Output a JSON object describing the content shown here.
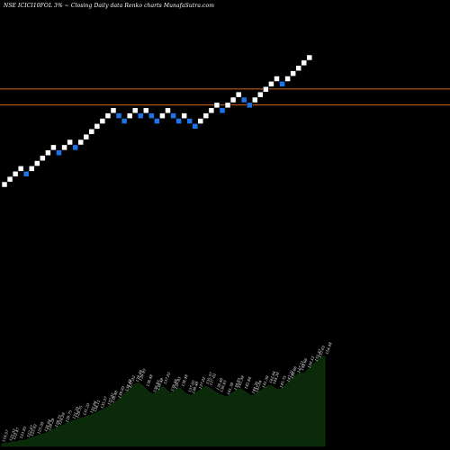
{
  "header": {
    "title": "NSE ICICI10FOL 3% ~  Closing Daily data  Renko  charts MunafaSutra.com"
  },
  "colors": {
    "background": "#000000",
    "up_brick": "#ffffff",
    "down_brick": "#1e73e6",
    "reference_line": "#d2691e",
    "volume_fill": "#0a2a0a"
  },
  "chart_data": {
    "type": "renko",
    "title": "NSE ICICI10FOL 3% ~  Closing Daily data  Renko  charts MunafaSutra.com",
    "xlabel": "",
    "ylabel": "",
    "reference_lines": [
      145.85,
      141.45
    ],
    "bricks": [
      {
        "dir": "up",
        "value": 119.57
      },
      {
        "dir": "up",
        "value": 121.02
      },
      {
        "dir": "up",
        "value": 122.47
      },
      {
        "dir": "up",
        "value": 123.93
      },
      {
        "dir": "down",
        "value": 122.47
      },
      {
        "dir": "up",
        "value": 123.93
      },
      {
        "dir": "up",
        "value": 125.38
      },
      {
        "dir": "up",
        "value": 126.84
      },
      {
        "dir": "up",
        "value": 128.29
      },
      {
        "dir": "up",
        "value": 129.75
      },
      {
        "dir": "down",
        "value": 128.29
      },
      {
        "dir": "up",
        "value": 129.75
      },
      {
        "dir": "up",
        "value": 131.2
      },
      {
        "dir": "down",
        "value": 129.75
      },
      {
        "dir": "up",
        "value": 131.2
      },
      {
        "dir": "up",
        "value": 132.66
      },
      {
        "dir": "up",
        "value": 134.11
      },
      {
        "dir": "up",
        "value": 135.57
      },
      {
        "dir": "up",
        "value": 137.02
      },
      {
        "dir": "up",
        "value": 138.48
      },
      {
        "dir": "up",
        "value": 139.93
      },
      {
        "dir": "down",
        "value": 138.48
      },
      {
        "dir": "down",
        "value": 137.02
      },
      {
        "dir": "up",
        "value": 138.48
      },
      {
        "dir": "up",
        "value": 139.93
      },
      {
        "dir": "down",
        "value": 138.48
      },
      {
        "dir": "up",
        "value": 139.93
      },
      {
        "dir": "down",
        "value": 138.48
      },
      {
        "dir": "down",
        "value": 137.02
      },
      {
        "dir": "up",
        "value": 138.48
      },
      {
        "dir": "up",
        "value": 139.93
      },
      {
        "dir": "down",
        "value": 138.48
      },
      {
        "dir": "down",
        "value": 137.02
      },
      {
        "dir": "up",
        "value": 138.48
      },
      {
        "dir": "down",
        "value": 137.02
      },
      {
        "dir": "down",
        "value": 135.57
      },
      {
        "dir": "up",
        "value": 137.02
      },
      {
        "dir": "up",
        "value": 138.48
      },
      {
        "dir": "up",
        "value": 139.93
      },
      {
        "dir": "up",
        "value": 141.39
      },
      {
        "dir": "down",
        "value": 139.93
      },
      {
        "dir": "up",
        "value": 141.39
      },
      {
        "dir": "up",
        "value": 142.84
      },
      {
        "dir": "up",
        "value": 144.3
      },
      {
        "dir": "down",
        "value": 142.84
      },
      {
        "dir": "down",
        "value": 141.39
      },
      {
        "dir": "up",
        "value": 142.84
      },
      {
        "dir": "up",
        "value": 144.3
      },
      {
        "dir": "up",
        "value": 145.75
      },
      {
        "dir": "up",
        "value": 147.21
      },
      {
        "dir": "up",
        "value": 148.66
      },
      {
        "dir": "down",
        "value": 147.21
      },
      {
        "dir": "up",
        "value": 148.66
      },
      {
        "dir": "up",
        "value": 150.12
      },
      {
        "dir": "up",
        "value": 151.57
      },
      {
        "dir": "up",
        "value": 153.03
      },
      {
        "dir": "up",
        "value": 154.48
      }
    ],
    "volume_profile": [
      2,
      3,
      3,
      4,
      4,
      5,
      5,
      6,
      7,
      8,
      9,
      10,
      11,
      12,
      14,
      15,
      17,
      18,
      19,
      21,
      22,
      23,
      24,
      25,
      26,
      27,
      28,
      29,
      31,
      32,
      34,
      36,
      38,
      40,
      43,
      46,
      49,
      52,
      54,
      55,
      53,
      50,
      47,
      45,
      47,
      50,
      52,
      49,
      46,
      48,
      51,
      50,
      47,
      45,
      44,
      46,
      48,
      50,
      52,
      51,
      49,
      47,
      45,
      44,
      43,
      45,
      47,
      49,
      50,
      48,
      46,
      44,
      45,
      47,
      49,
      51,
      53,
      52,
      50,
      49,
      51,
      54,
      57,
      60,
      62,
      64,
      63,
      66,
      69,
      72,
      75,
      77,
      78
    ],
    "price_labels": [
      "119.57",
      "121.02",
      "122.47",
      "123.93",
      "122.47",
      "123.93",
      "125.38",
      "126.84",
      "128.29",
      "129.75",
      "128.29",
      "129.75",
      "131.20",
      "129.75",
      "131.20",
      "132.66",
      "134.11",
      "135.57",
      "137.02",
      "138.48",
      "139.93",
      "138.48",
      "137.02",
      "138.48",
      "139.93",
      "138.48",
      "139.93",
      "138.48",
      "137.02",
      "138.48",
      "139.93",
      "138.48",
      "137.02",
      "138.48",
      "137.02",
      "135.57",
      "137.02",
      "138.48",
      "139.93",
      "141.39",
      "139.93",
      "141.39",
      "142.84",
      "144.30",
      "142.84",
      "141.39",
      "142.84",
      "144.30",
      "145.75",
      "147.21",
      "148.66",
      "147.21",
      "148.66",
      "150.12",
      "151.57",
      "153.03",
      "154.48"
    ]
  }
}
